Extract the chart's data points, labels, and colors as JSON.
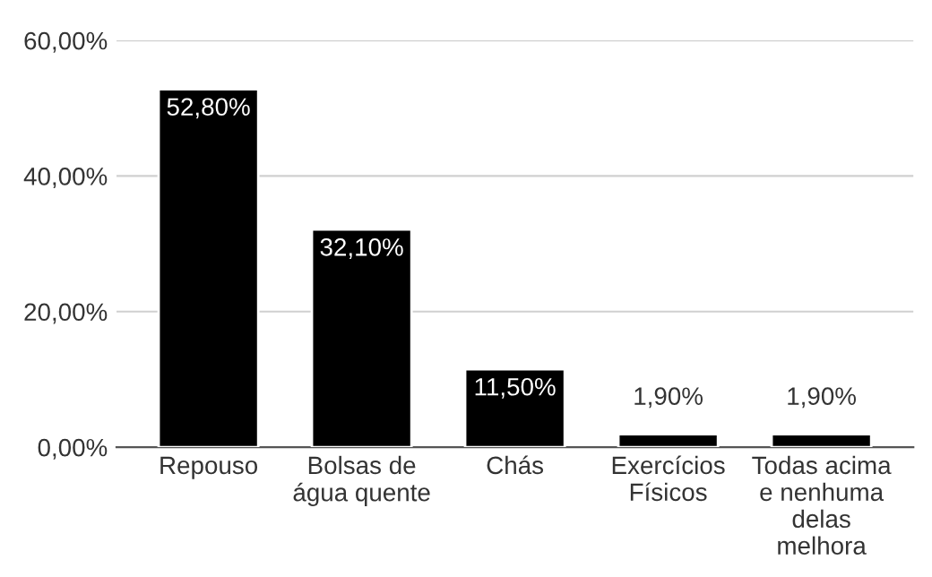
{
  "chart_data": {
    "type": "bar",
    "categories": [
      "Repouso",
      "Bolsas de\nágua quente",
      "Chás",
      "Exercícios\nFísicos",
      "Todas acima\ne nenhuma\ndelas\nmelhora"
    ],
    "values": [
      52.8,
      32.1,
      11.5,
      1.9,
      1.9
    ],
    "value_labels": [
      "52,80%",
      "32,10%",
      "11,50%",
      "1,90%",
      "1,90%"
    ],
    "color": "#000000",
    "ylim": [
      0,
      60
    ],
    "yticks": [
      {
        "value": 0,
        "label": "0,00%"
      },
      {
        "value": 20,
        "label": "20,00%"
      },
      {
        "value": 40,
        "label": "40,00%"
      },
      {
        "value": 60,
        "label": "60,00%"
      }
    ],
    "grid": "y"
  }
}
